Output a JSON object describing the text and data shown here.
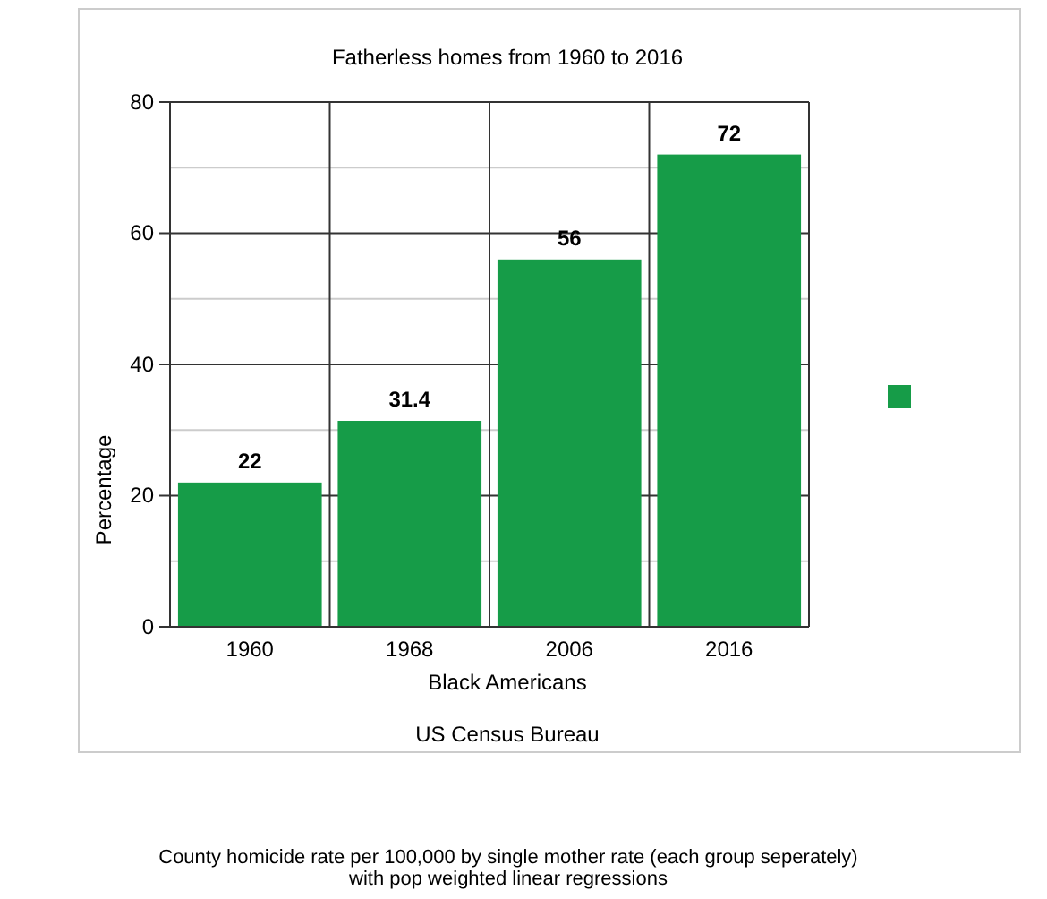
{
  "chart_data": {
    "type": "bar",
    "title": "Fatherless homes from 1960 to 2016",
    "xlabel": "Black Americans",
    "ylabel": "Percentage",
    "annotations": [
      "US Census Bureau",
      "County homicide rate per 100,000 by single mother rate (each group seperately) with pop weighted linear regressions"
    ],
    "categories": [
      "1960",
      "1968",
      "2006",
      "2016"
    ],
    "series": [
      {
        "color": "#169c48",
        "values": [
          22,
          31.4,
          56,
          72
        ]
      }
    ],
    "ylim": [
      0,
      80
    ],
    "yticks": [
      0,
      20,
      40,
      60,
      80
    ],
    "grid": true,
    "data_labels": true
  }
}
